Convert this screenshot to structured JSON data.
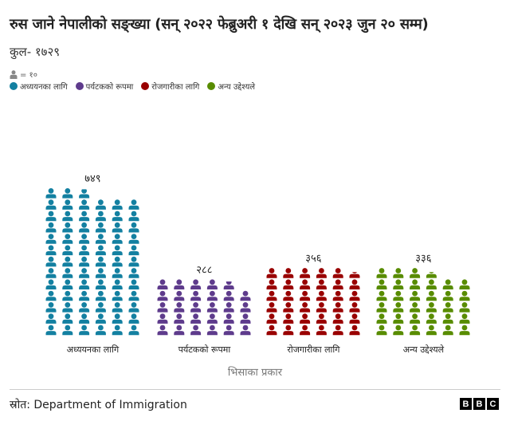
{
  "title": "रुस जाने नेपालीको सङ्ख्या (सन् २०२२ फेब्रुअरी १ देखि सन् २०२३ जुन २० सम्म)",
  "subtitle": "कुल- १७२९",
  "key": {
    "icon": "person-icon",
    "label": "= १०"
  },
  "source": "स्रोत: Department of Immigration",
  "logo": [
    "B",
    "B",
    "C"
  ],
  "chart_data": {
    "type": "pictogram",
    "unit_value": 10,
    "xlabel": "भिसाका प्रकार",
    "categories": [
      "अध्ययनका लागि",
      "पर्यटकको रूपमा",
      "रोजगारीका लागि",
      "अन्य उद्देश्यले"
    ],
    "values": [
      749,
      288,
      356,
      336
    ],
    "value_labels": [
      "७४९",
      "२८८",
      "३५६",
      "३३६"
    ],
    "colors": [
      "#1380a1",
      "#5e3b8c",
      "#990000",
      "#588c00"
    ],
    "legend_position": "top-left",
    "grid": false
  }
}
